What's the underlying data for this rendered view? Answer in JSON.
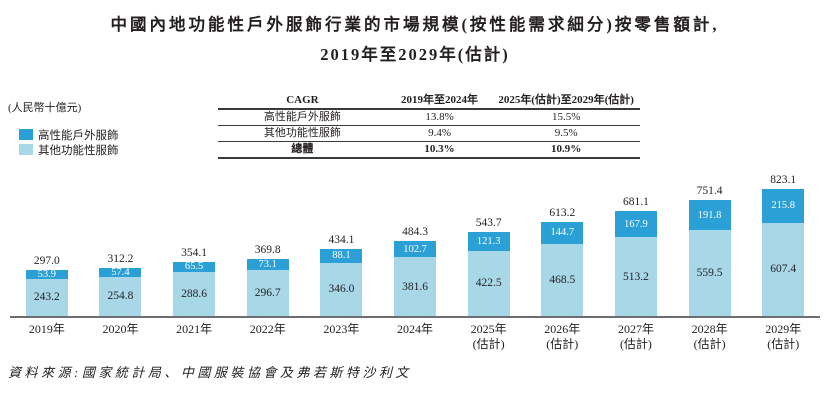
{
  "title": {
    "line1": "中國內地功能性戶外服飾行業的市場規模(按性能需求細分)按零售額計,",
    "line2": "2019年至2029年(估計)"
  },
  "legend": [
    {
      "label": "高性能戶外服飾",
      "color": "#2AA0D6"
    },
    {
      "label": "其他功能性服飾",
      "color": "#A8D8E8"
    }
  ],
  "table": {
    "headers": [
      "CAGR",
      "2019年至2024年",
      "2025年(估計)至2029年(估計)"
    ],
    "rows": [
      [
        "高性能戶外服飾",
        "13.8%",
        "15.5%"
      ],
      [
        "其他功能性服飾",
        "9.4%",
        "9.5%"
      ],
      [
        "總體",
        "10.3%",
        "10.9%"
      ]
    ]
  },
  "chart_data": {
    "type": "bar",
    "stacked": true,
    "unit": "(人民幣十億元)",
    "categories": [
      {
        "line1": "2019年",
        "line2": ""
      },
      {
        "line1": "2020年",
        "line2": ""
      },
      {
        "line1": "2021年",
        "line2": ""
      },
      {
        "line1": "2022年",
        "line2": ""
      },
      {
        "line1": "2023年",
        "line2": ""
      },
      {
        "line1": "2024年",
        "line2": ""
      },
      {
        "line1": "2025年",
        "line2": "(估計)"
      },
      {
        "line1": "2026年",
        "line2": "(估計)"
      },
      {
        "line1": "2027年",
        "line2": "(估計)"
      },
      {
        "line1": "2028年",
        "line2": "(估計)"
      },
      {
        "line1": "2029年",
        "line2": "(估計)"
      }
    ],
    "series": [
      {
        "name": "高性能戶外服飾",
        "color": "#2AA0D6",
        "values": [
          53.9,
          57.4,
          65.5,
          73.1,
          88.1,
          102.7,
          121.3,
          144.7,
          167.9,
          191.8,
          215.8
        ]
      },
      {
        "name": "其他功能性服飾",
        "color": "#A8D8E8",
        "values": [
          243.2,
          254.8,
          288.6,
          296.7,
          346.0,
          381.6,
          422.5,
          468.5,
          513.2,
          559.5,
          607.4
        ]
      }
    ],
    "totals": [
      297.0,
      312.2,
      354.1,
      369.8,
      434.1,
      484.3,
      543.7,
      613.2,
      681.1,
      751.4,
      823.1
    ]
  },
  "source": "資料來源:國家統計局、中國服裝協會及弗若斯特沙利文"
}
